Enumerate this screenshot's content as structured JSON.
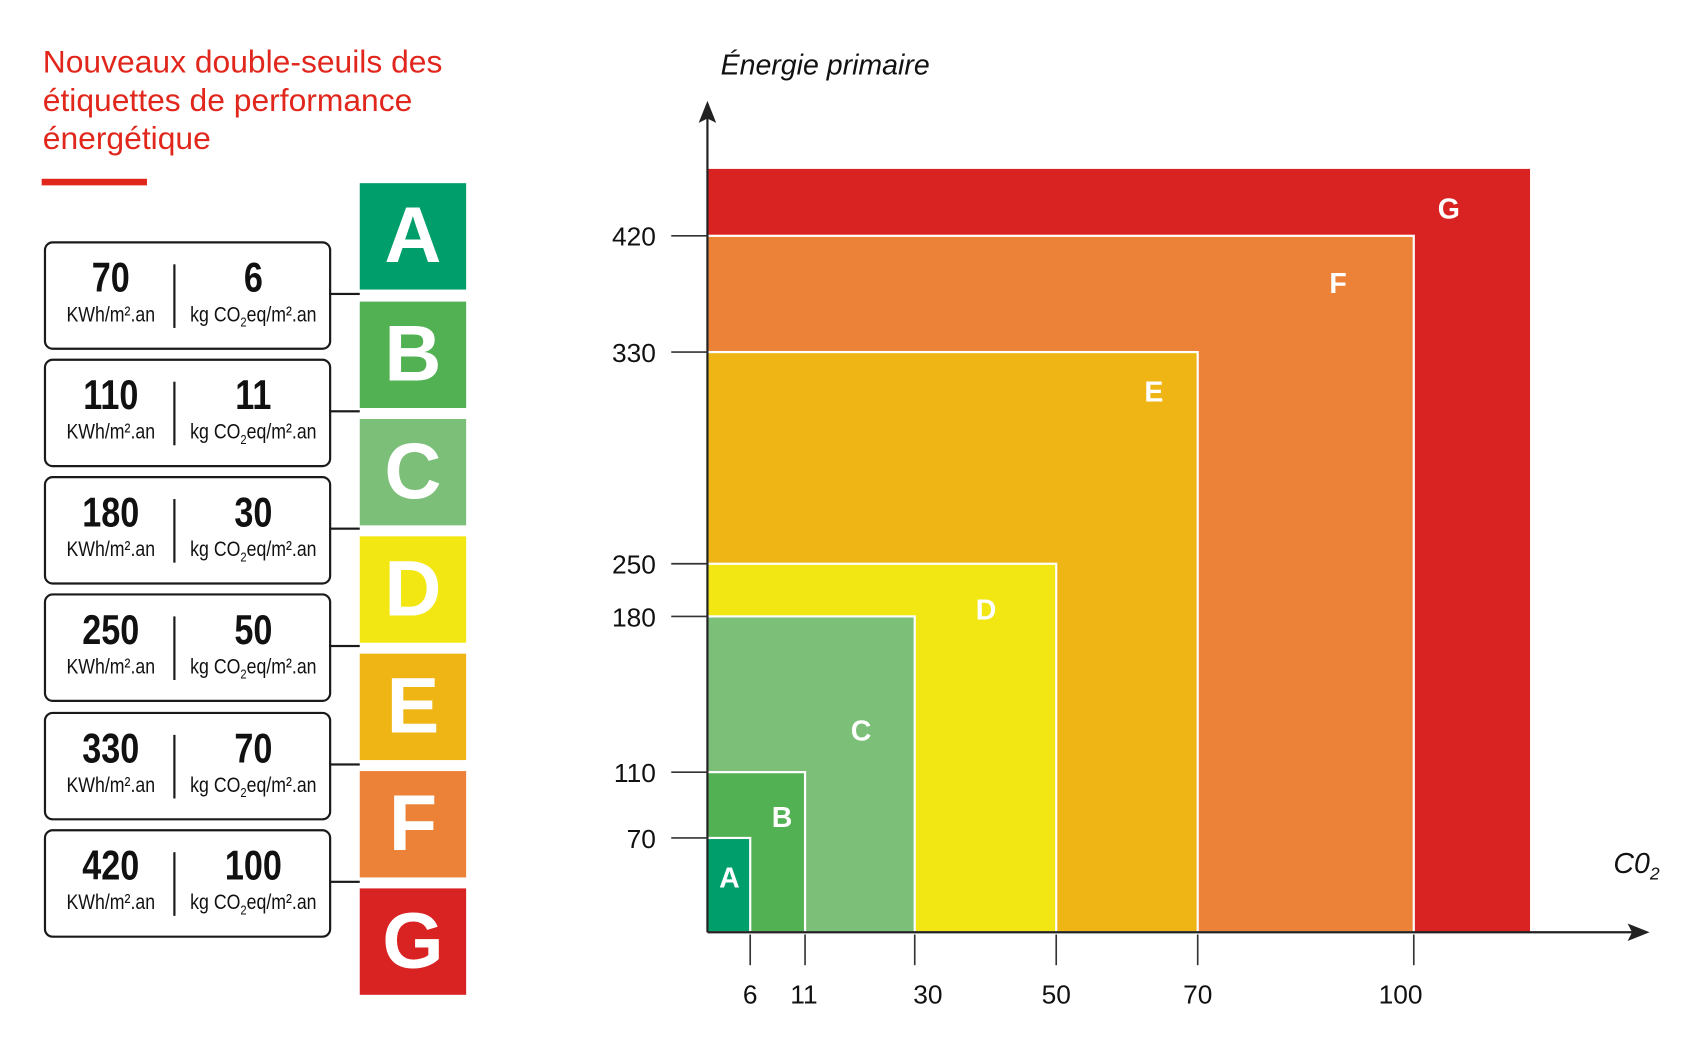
{
  "title": "Nouveaux double-seuils des étiquettes de performance énergétique",
  "units": {
    "energy": "KWh/m².an",
    "co2_prefix": "kg CO",
    "co2_sub": "2",
    "co2_suffix": "eq/m².an"
  },
  "table": [
    {
      "class": "A",
      "energy": "70",
      "co2": "6"
    },
    {
      "class": "B",
      "energy": "110",
      "co2": "11"
    },
    {
      "class": "C",
      "energy": "180",
      "co2": "30"
    },
    {
      "class": "D",
      "energy": "250",
      "co2": "50"
    },
    {
      "class": "E",
      "energy": "330",
      "co2": "70"
    },
    {
      "class": "F",
      "energy": "420",
      "co2": "100"
    },
    {
      "class": "G"
    }
  ],
  "colors": {
    "A": "#009e6b",
    "B": "#52b153",
    "C": "#7bbf78",
    "D": "#f2e713",
    "E": "#eeb515",
    "F": "#eb8238",
    "G": "#d92323",
    "title": "#e1261c"
  },
  "chart_data": {
    "type": "nested-rectangles",
    "ylabel": "Énergie primaire",
    "xlabel_main": "C0",
    "xlabel_sub": "2",
    "x_ticks": [
      6,
      11,
      30,
      50,
      70,
      100
    ],
    "y_ticks": [
      70,
      110,
      180,
      250,
      330,
      420
    ],
    "zones": [
      {
        "label": "A",
        "x_max": 6,
        "y_max": 70
      },
      {
        "label": "B",
        "x_max": 11,
        "y_max": 110
      },
      {
        "label": "C",
        "x_max": 30,
        "y_max": 180
      },
      {
        "label": "D",
        "x_max": 50,
        "y_max": 250
      },
      {
        "label": "E",
        "x_max": 70,
        "y_max": 330
      },
      {
        "label": "F",
        "x_max": 100,
        "y_max": 420
      },
      {
        "label": "G",
        "x_max": null,
        "y_max": null
      }
    ]
  }
}
